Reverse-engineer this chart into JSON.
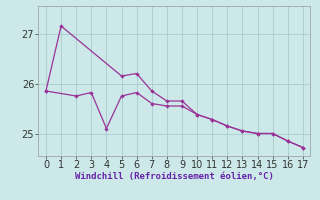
{
  "xlabel": "Windchill (Refroidissement éolien,°C)",
  "line_color": "#993399",
  "bg_color": "#cce8e8",
  "grid_color": "#aacccc",
  "ylim": [
    24.55,
    27.55
  ],
  "yticks": [
    25,
    26,
    27
  ],
  "xlim": [
    -0.5,
    17.5
  ],
  "xticks": [
    0,
    1,
    2,
    3,
    4,
    5,
    6,
    7,
    8,
    9,
    10,
    11,
    12,
    13,
    14,
    15,
    16,
    17
  ],
  "upper_x": [
    0,
    1,
    5,
    6,
    7,
    8,
    9,
    10,
    11,
    12,
    13,
    14,
    15,
    16,
    17
  ],
  "upper_y": [
    25.85,
    27.15,
    26.15,
    26.2,
    25.85,
    25.65,
    25.65,
    25.38,
    25.28,
    25.15,
    25.05,
    25.0,
    25.0,
    24.85,
    24.72
  ],
  "lower_x": [
    0,
    2,
    3,
    4,
    5,
    6,
    7,
    8,
    9,
    10,
    11,
    12,
    13,
    14,
    15,
    16,
    17
  ],
  "lower_y": [
    25.85,
    25.75,
    25.82,
    25.1,
    25.75,
    25.82,
    25.6,
    25.55,
    25.55,
    25.38,
    25.28,
    25.15,
    25.05,
    25.0,
    25.0,
    24.85,
    24.72
  ],
  "tick_fontsize": 7,
  "xlabel_fontsize": 6.5
}
